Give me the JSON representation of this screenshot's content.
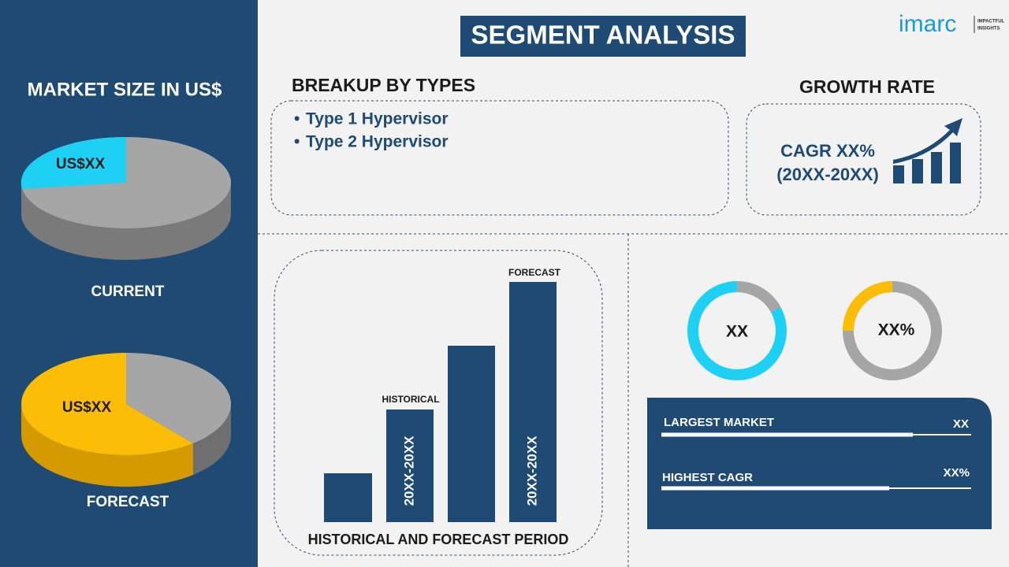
{
  "sidebar": {
    "title": "MARKET SIZE IN US$",
    "current": {
      "value": "US$XX",
      "label": "CURRENT"
    },
    "forecast": {
      "value": "US$XX",
      "label": "FORECAST"
    }
  },
  "header": {
    "title": "SEGMENT ANALYSIS",
    "logo": "imarc",
    "tagline": [
      "IMPACTFUL",
      "INSIGHTS"
    ]
  },
  "breakup": {
    "title": "BREAKUP BY TYPES",
    "items": [
      "Type 1 Hypervisor",
      "Type 2 Hypervisor"
    ]
  },
  "growth": {
    "title": "GROWTH RATE",
    "cagr": "CAGR XX%",
    "period": "(20XX-20XX)"
  },
  "periods": {
    "title": "HISTORICAL AND FORECAST PERIOD",
    "historical": "HISTORICAL",
    "forecast": "FORECAST",
    "bar_labels": [
      "20XX-20XX",
      "20XX-20XX"
    ]
  },
  "donuts": [
    "XX",
    "XX%"
  ],
  "metrics": [
    {
      "label": "LARGEST MARKET",
      "value": "XX"
    },
    {
      "label": "HIGHEST CAGR",
      "value": "XX%"
    }
  ]
}
